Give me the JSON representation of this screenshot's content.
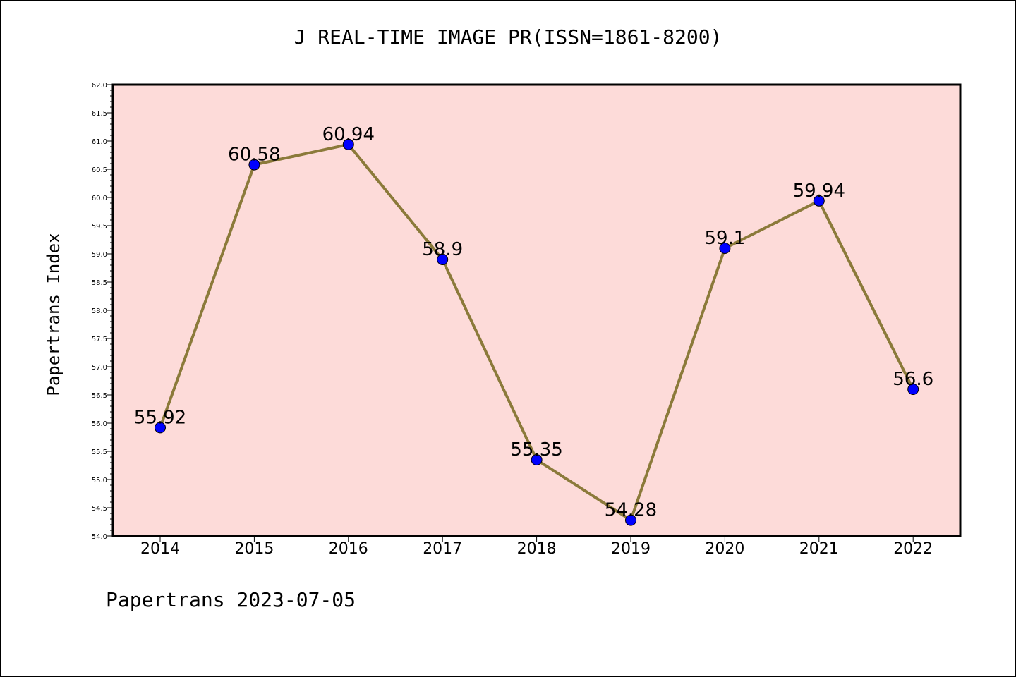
{
  "colors": {
    "plot_background": "#fddbd9",
    "line": "#8b7a3a",
    "marker": "#0000ff"
  },
  "footer": "Papertrans 2023-07-05",
  "chart_data": {
    "type": "line",
    "title": "J REAL-TIME IMAGE PR(ISSN=1861-8200)",
    "xlabel": "",
    "ylabel": "Papertrans Index",
    "categories": [
      "2014",
      "2015",
      "2016",
      "2017",
      "2018",
      "2019",
      "2020",
      "2021",
      "2022"
    ],
    "values": [
      55.92,
      60.58,
      60.94,
      58.9,
      55.35,
      54.28,
      59.1,
      59.94,
      56.6
    ],
    "data_labels": [
      "55.92",
      "60.58",
      "60.94",
      "58.9",
      "55.35",
      "54.28",
      "59.1",
      "59.94",
      "56.6"
    ],
    "ylim": [
      54.0,
      62.0
    ],
    "y_ticks": [
      "54.0",
      "54.5",
      "55.0",
      "55.5",
      "56.0",
      "56.5",
      "57.0",
      "57.5",
      "58.0",
      "58.5",
      "59.0",
      "59.5",
      "60.0",
      "60.5",
      "61.0",
      "61.5",
      "62.0"
    ],
    "grid": false,
    "legend": "none"
  }
}
